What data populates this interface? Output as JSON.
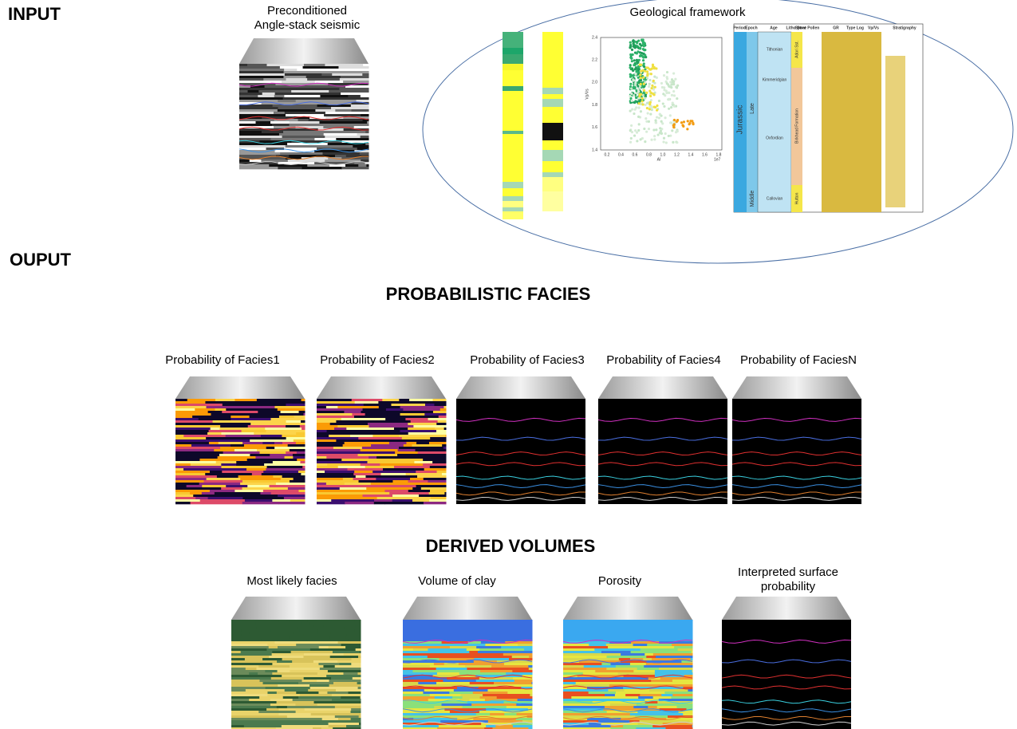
{
  "input": {
    "title": "INPUT",
    "seismic_label": [
      "Preconditioned",
      "Angle-stack seismic"
    ],
    "framework_label": "Geological framework",
    "crossplot": {
      "y_label": "Vp/Vs",
      "x_label": "AI",
      "x_exponent": "1e7",
      "y_ticks": [
        "2.4",
        "2.2",
        "2.0",
        "1.8",
        "1.6",
        "1.4"
      ],
      "x_ticks": [
        "0.2",
        "0.4",
        "0.6",
        "0.8",
        "1.0",
        "1.2",
        "1.4",
        "1.6",
        "1.8"
      ]
    },
    "strat_column": {
      "headers": [
        "Period",
        "Epoch",
        "Age",
        "Litho Strat",
        "Spore Pollen",
        "GR",
        "Type Log",
        "Vp/Vs",
        "Stratigraphy"
      ],
      "period": "Jurassic",
      "epochs": [
        "Late",
        "Middle"
      ],
      "ages": [
        "Tithonian",
        "Kimmeridgian",
        "Oxfordian",
        "Callovian"
      ],
      "formations": [
        "Adori Sst.",
        "Birkhead Formation",
        "Hutton"
      ]
    }
  },
  "output": {
    "title": "OUPUT",
    "probabilistic": {
      "title": "PROBABILISTIC FACIES",
      "panels": [
        "Probability of Facies1",
        "Probability of Facies2",
        "Probability of Facies3",
        "Probability of Facies4",
        "Probability of FaciesN"
      ]
    },
    "derived": {
      "title": "DERIVED VOLUMES",
      "panels": [
        [
          "Most likely facies"
        ],
        [
          "Volume of clay"
        ],
        [
          "Porosity"
        ],
        [
          "Interpreted surface",
          "probability"
        ]
      ]
    }
  }
}
